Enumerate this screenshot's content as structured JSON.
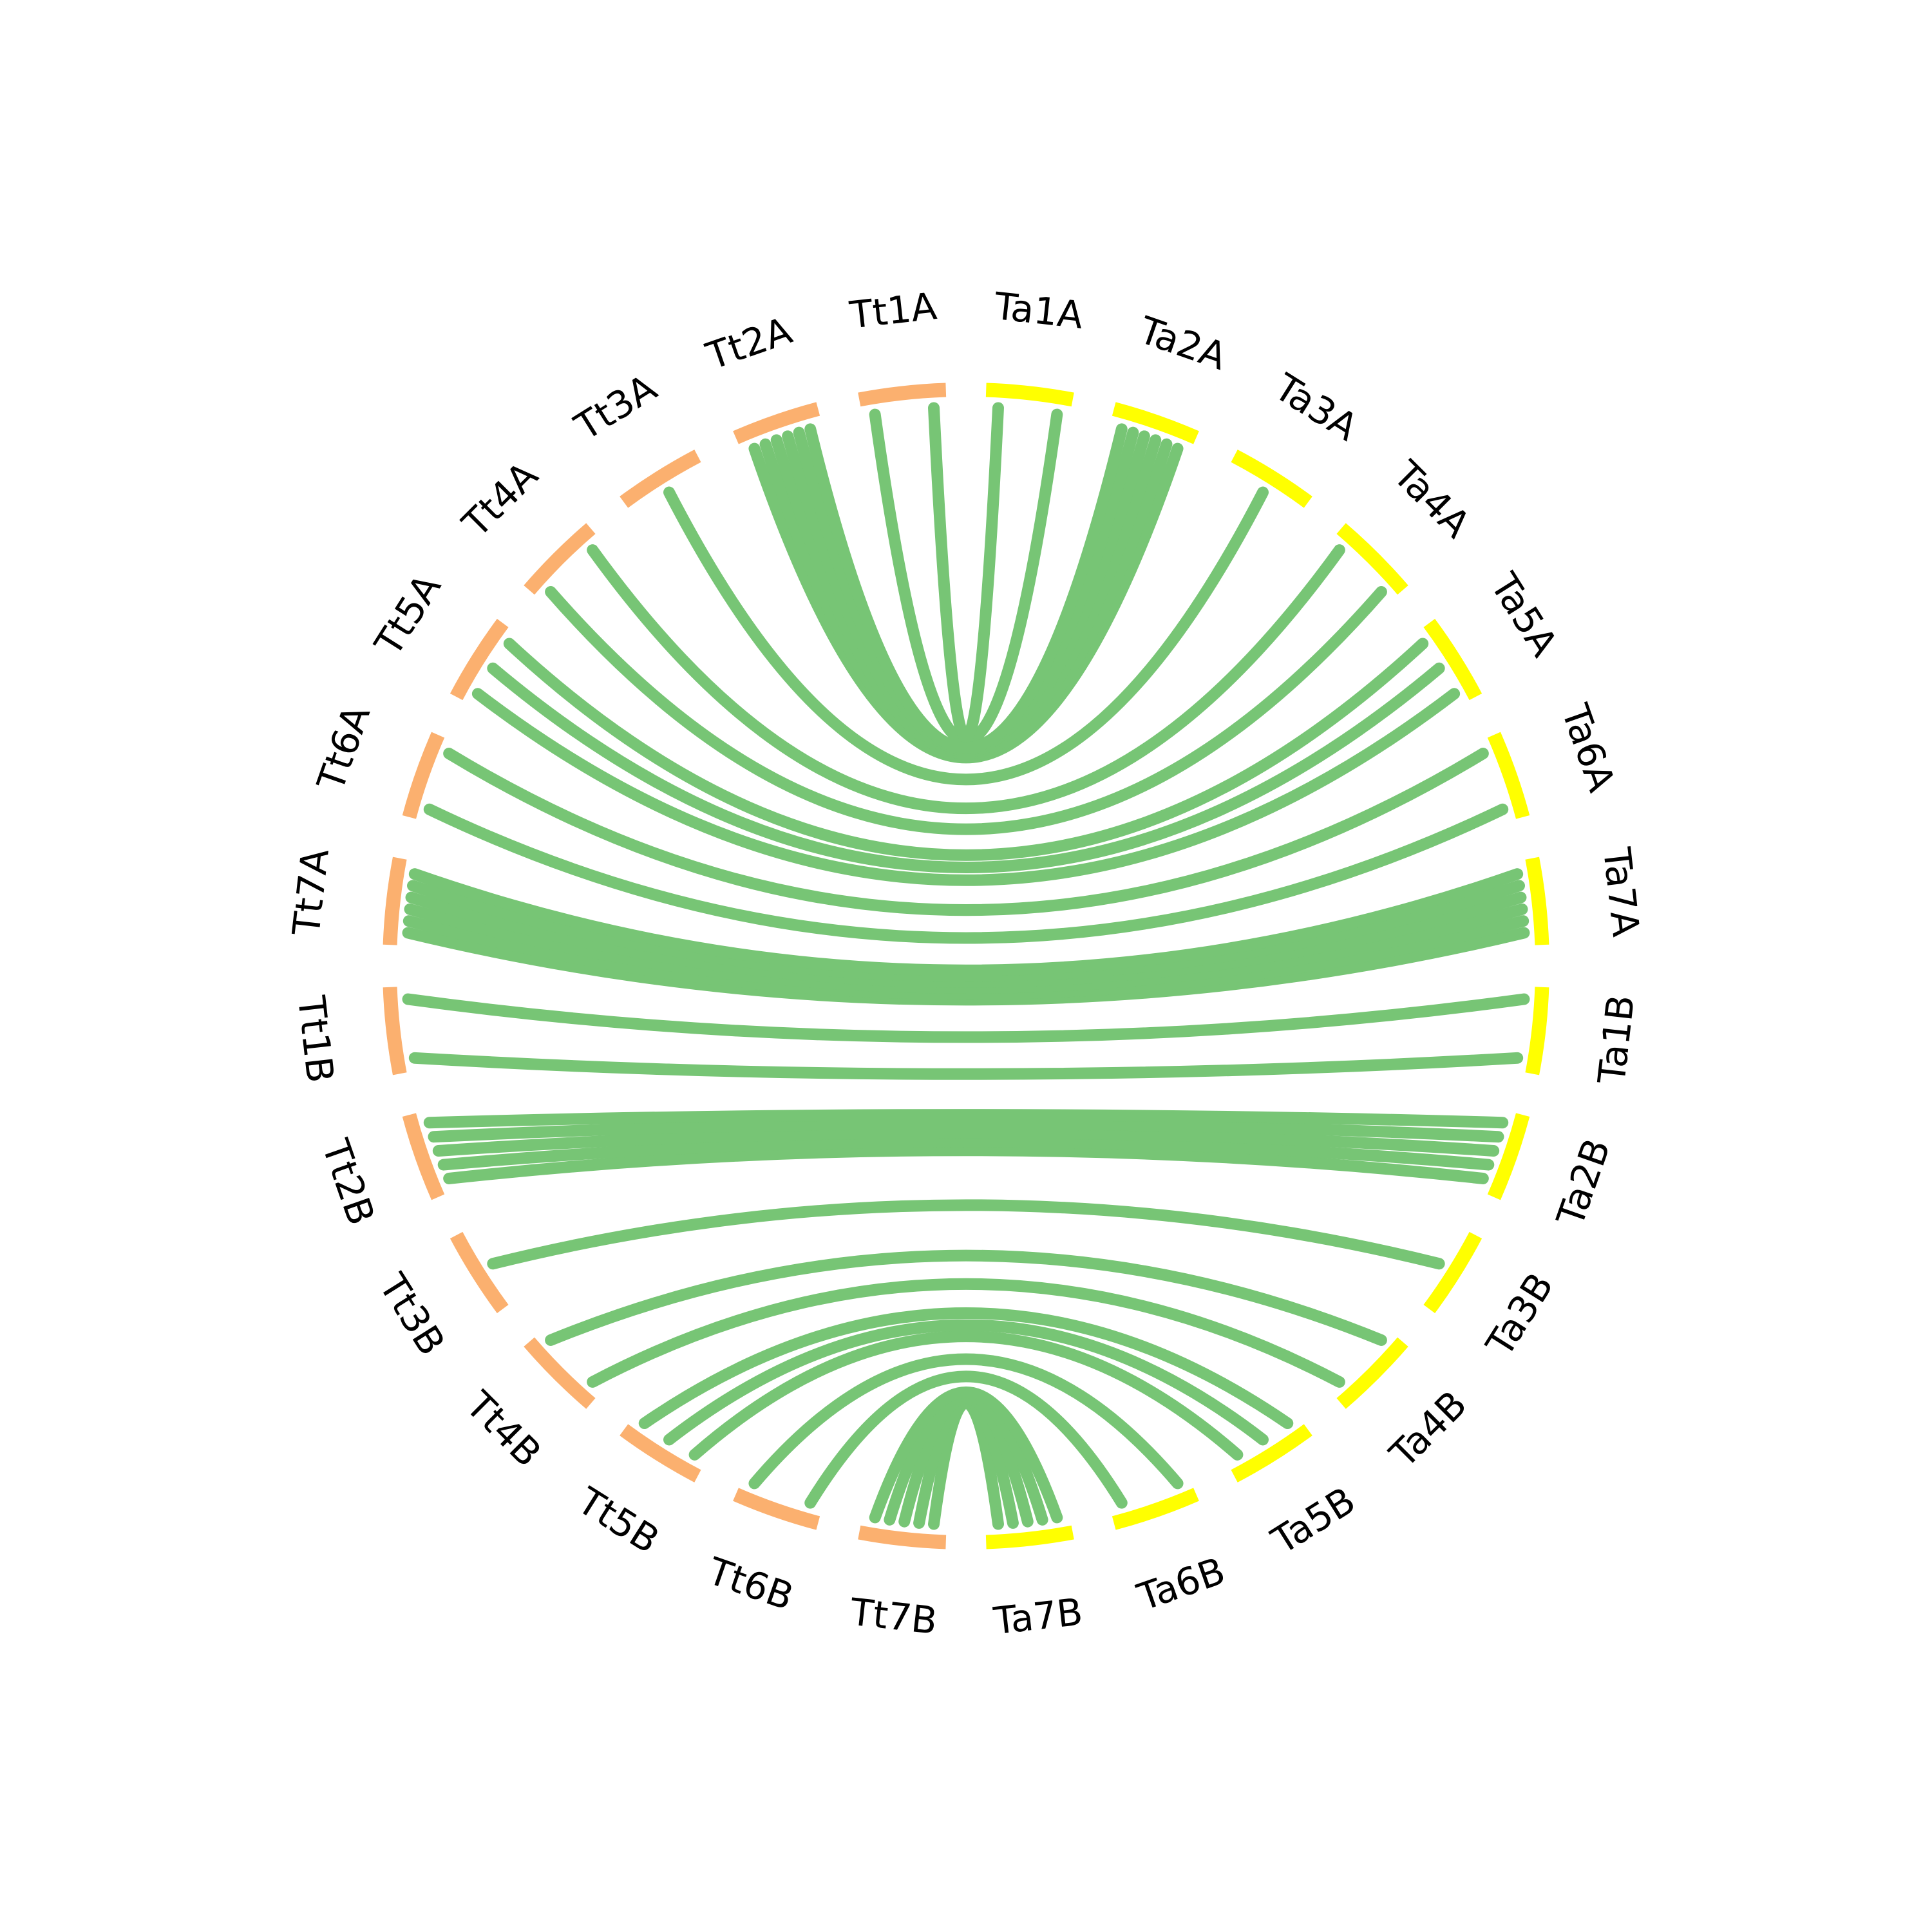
{
  "colors": {
    "tt": "#fbb06f",
    "ta": "#ffff00",
    "link": "#77c575",
    "label": "#000000"
  },
  "chromosomes": {
    "tt": [
      "Tt1A",
      "Tt2A",
      "Tt3A",
      "Tt4A",
      "Tt5A",
      "Tt6A",
      "Tt7A",
      "Tt1B",
      "Tt2B",
      "Tt3B",
      "Tt4B",
      "Tt5B",
      "Tt6B",
      "Tt7B"
    ],
    "ta": [
      "Ta1A",
      "Ta2A",
      "Ta3A",
      "Ta4A",
      "Ta5A",
      "Ta6A",
      "Ta7A",
      "Ta1B",
      "Ta2B",
      "Ta3B",
      "Ta4B",
      "Ta5B",
      "Ta6B",
      "Ta7B"
    ]
  },
  "links": [
    [
      "Tt1A",
      "Ta1A"
    ],
    [
      "Tt1A",
      "Ta1A"
    ],
    [
      "Tt2A",
      "Ta2A"
    ],
    [
      "Tt2A",
      "Ta2A"
    ],
    [
      "Tt2A",
      "Ta2A"
    ],
    [
      "Tt2A",
      "Ta2A"
    ],
    [
      "Tt2A",
      "Ta2A"
    ],
    [
      "Tt2A",
      "Ta2A"
    ],
    [
      "Tt3A",
      "Ta3A"
    ],
    [
      "Tt4A",
      "Ta4A"
    ],
    [
      "Tt4A",
      "Ta4A"
    ],
    [
      "Tt5A",
      "Ta5A"
    ],
    [
      "Tt5A",
      "Ta5A"
    ],
    [
      "Tt5A",
      "Ta5A"
    ],
    [
      "Tt6A",
      "Ta6A"
    ],
    [
      "Tt6A",
      "Ta6A"
    ],
    [
      "Tt7A",
      "Ta7A"
    ],
    [
      "Tt7A",
      "Ta7A"
    ],
    [
      "Tt7A",
      "Ta7A"
    ],
    [
      "Tt7A",
      "Ta7A"
    ],
    [
      "Tt7A",
      "Ta7A"
    ],
    [
      "Tt7A",
      "Ta7A"
    ],
    [
      "Tt1B",
      "Ta1B"
    ],
    [
      "Tt1B",
      "Ta1B"
    ],
    [
      "Tt2B",
      "Ta2B"
    ],
    [
      "Tt2B",
      "Ta2B"
    ],
    [
      "Tt2B",
      "Ta2B"
    ],
    [
      "Tt2B",
      "Ta2B"
    ],
    [
      "Tt2B",
      "Ta2B"
    ],
    [
      "Tt3B",
      "Ta3B"
    ],
    [
      "Tt4B",
      "Ta4B"
    ],
    [
      "Tt4B",
      "Ta4B"
    ],
    [
      "Tt5B",
      "Ta5B"
    ],
    [
      "Tt5B",
      "Ta5B"
    ],
    [
      "Tt5B",
      "Ta5B"
    ],
    [
      "Tt6B",
      "Ta6B"
    ],
    [
      "Tt6B",
      "Ta6B"
    ],
    [
      "Tt7B",
      "Ta7B"
    ],
    [
      "Tt7B",
      "Ta7B"
    ],
    [
      "Tt7B",
      "Ta7B"
    ],
    [
      "Tt7B",
      "Ta7B"
    ],
    [
      "Tt7B",
      "Ta7B"
    ]
  ]
}
